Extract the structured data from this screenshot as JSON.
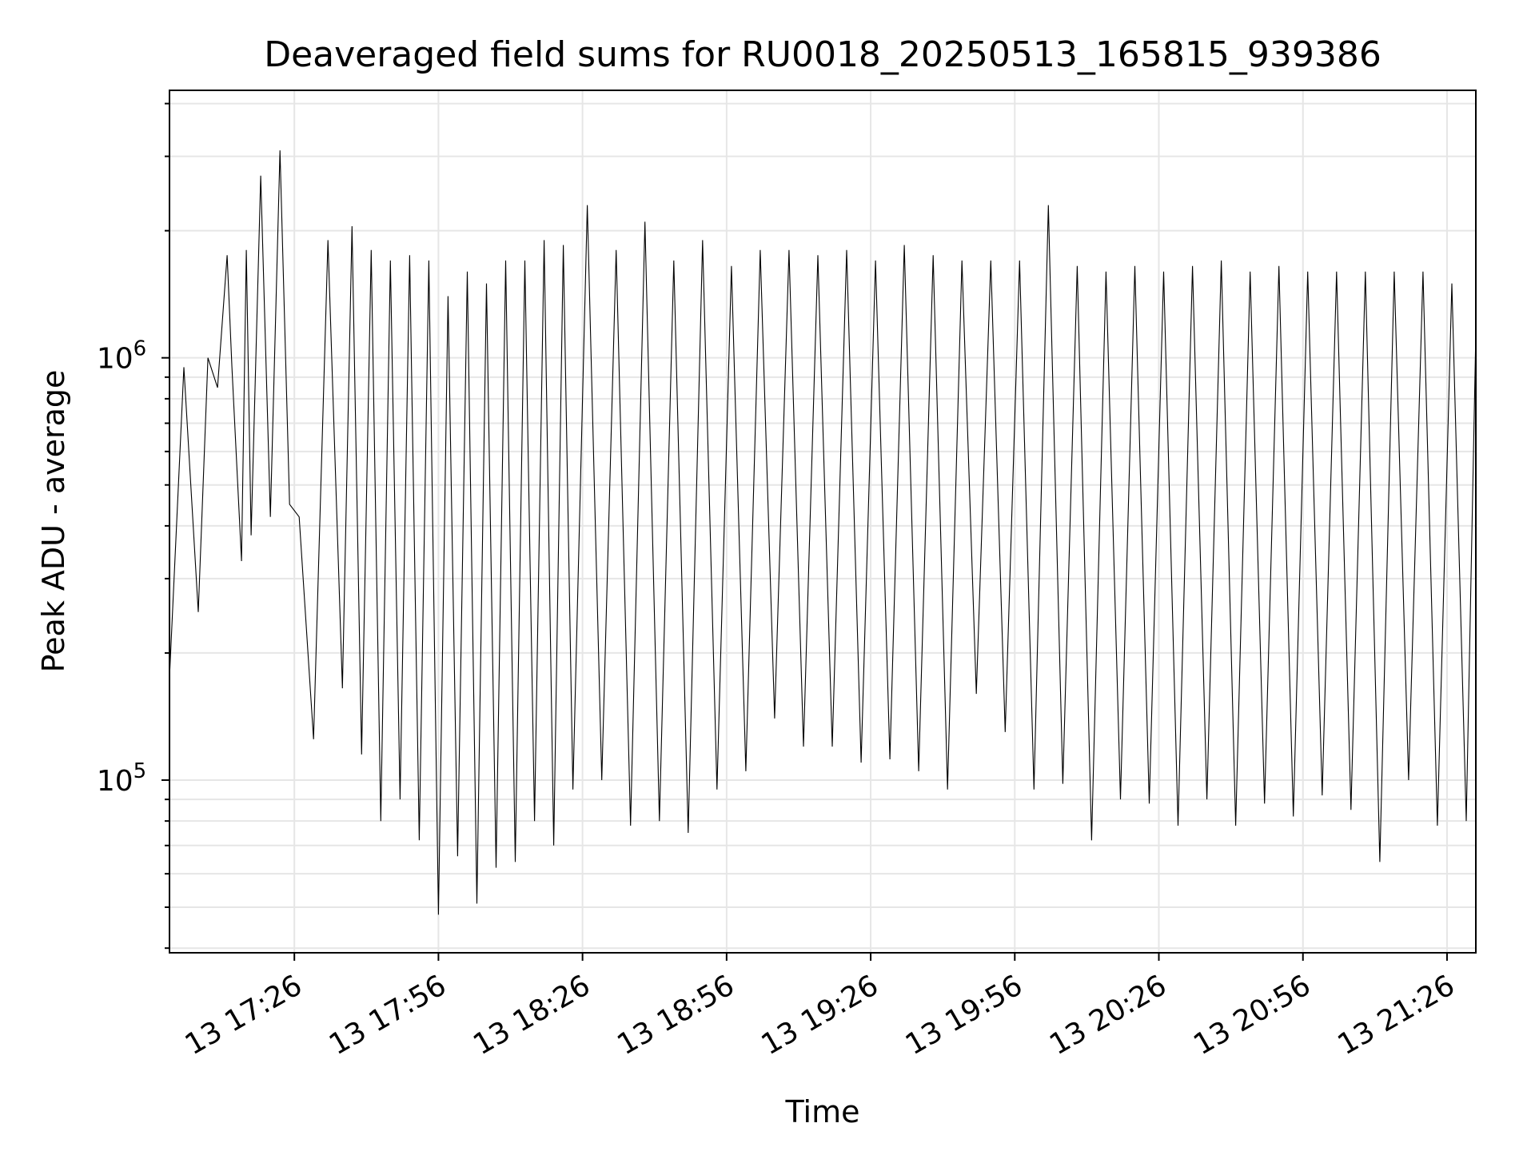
{
  "chart_data": {
    "type": "line",
    "title": "Deaveraged field sums for RU0018_20250513_165815_939386",
    "xlabel": "Time",
    "ylabel": "Peak ADU - average",
    "yscale": "log",
    "ylim": [
      39000,
      4300000
    ],
    "xlim": [
      "2025-05-13 17:00",
      "2025-05-13 21:32"
    ],
    "grid": true,
    "line_color": "#000000",
    "grid_color": "#e6e6e6",
    "x_ticks": [
      "13 17:26",
      "13 17:56",
      "13 18:26",
      "13 18:56",
      "13 19:26",
      "13 19:56",
      "13 20:26",
      "13 20:56",
      "13 21:26"
    ],
    "y_ticks": [
      {
        "value": 100000,
        "mantissa": "10",
        "exponent": "5"
      },
      {
        "value": 1000000,
        "mantissa": "10",
        "exponent": "6"
      }
    ],
    "series": [
      {
        "x": [
          "2025-05-13 17:00",
          "2025-05-13 17:03",
          "2025-05-13 17:06",
          "2025-05-13 17:08",
          "2025-05-13 17:10",
          "2025-05-13 17:12",
          "2025-05-13 17:13",
          "2025-05-13 17:15",
          "2025-05-13 17:16",
          "2025-05-13 17:17",
          "2025-05-13 17:19",
          "2025-05-13 17:21",
          "2025-05-13 17:23",
          "2025-05-13 17:25",
          "2025-05-13 17:27",
          "2025-05-13 17:30",
          "2025-05-13 17:33",
          "2025-05-13 17:36",
          "2025-05-13 17:38",
          "2025-05-13 17:40",
          "2025-05-13 17:42",
          "2025-05-13 17:44",
          "2025-05-13 17:46",
          "2025-05-13 17:48",
          "2025-05-13 17:50",
          "2025-05-13 17:52",
          "2025-05-13 17:54",
          "2025-05-13 17:56",
          "2025-05-13 17:58",
          "2025-05-13 18:00",
          "2025-05-13 18:02",
          "2025-05-13 18:04",
          "2025-05-13 18:06",
          "2025-05-13 18:08",
          "2025-05-13 18:10",
          "2025-05-13 18:12",
          "2025-05-13 18:14",
          "2025-05-13 18:16",
          "2025-05-13 18:18",
          "2025-05-13 18:20",
          "2025-05-13 18:22",
          "2025-05-13 18:24",
          "2025-05-13 18:27",
          "2025-05-13 18:30",
          "2025-05-13 18:33",
          "2025-05-13 18:36",
          "2025-05-13 18:39",
          "2025-05-13 18:42",
          "2025-05-13 18:45",
          "2025-05-13 18:48",
          "2025-05-13 18:51",
          "2025-05-13 18:54",
          "2025-05-13 18:57",
          "2025-05-13 19:00",
          "2025-05-13 19:03",
          "2025-05-13 19:06",
          "2025-05-13 19:09",
          "2025-05-13 19:12",
          "2025-05-13 19:15",
          "2025-05-13 19:18",
          "2025-05-13 19:21",
          "2025-05-13 19:24",
          "2025-05-13 19:27",
          "2025-05-13 19:30",
          "2025-05-13 19:33",
          "2025-05-13 19:36",
          "2025-05-13 19:39",
          "2025-05-13 19:42",
          "2025-05-13 19:45",
          "2025-05-13 19:48",
          "2025-05-13 19:51",
          "2025-05-13 19:54",
          "2025-05-13 19:57",
          "2025-05-13 20:00",
          "2025-05-13 20:03",
          "2025-05-13 20:06",
          "2025-05-13 20:09",
          "2025-05-13 20:12",
          "2025-05-13 20:15",
          "2025-05-13 20:18",
          "2025-05-13 20:21",
          "2025-05-13 20:24",
          "2025-05-13 20:27",
          "2025-05-13 20:30",
          "2025-05-13 20:33",
          "2025-05-13 20:36",
          "2025-05-13 20:39",
          "2025-05-13 20:42",
          "2025-05-13 20:45",
          "2025-05-13 20:48",
          "2025-05-13 20:51",
          "2025-05-13 20:54",
          "2025-05-13 20:57",
          "2025-05-13 21:00",
          "2025-05-13 21:03",
          "2025-05-13 21:06",
          "2025-05-13 21:09",
          "2025-05-13 21:12",
          "2025-05-13 21:15",
          "2025-05-13 21:18",
          "2025-05-13 21:21",
          "2025-05-13 21:24",
          "2025-05-13 21:27",
          "2025-05-13 21:30",
          "2025-05-13 21:32"
        ],
        "y": [
          175000,
          950000,
          250000,
          1000000,
          850000,
          1750000,
          950000,
          330000,
          1800000,
          380000,
          2700000,
          420000,
          3100000,
          450000,
          420000,
          125000,
          1900000,
          165000,
          2050000,
          115000,
          1800000,
          80000,
          1700000,
          90000,
          1750000,
          72000,
          1700000,
          48000,
          1400000,
          66000,
          1600000,
          51000,
          1500000,
          62000,
          1700000,
          64000,
          1700000,
          80000,
          1900000,
          70000,
          1850000,
          95000,
          2300000,
          100000,
          1800000,
          78000,
          2100000,
          80000,
          1700000,
          75000,
          1900000,
          95000,
          1650000,
          105000,
          1800000,
          140000,
          1800000,
          120000,
          1750000,
          120000,
          1800000,
          110000,
          1700000,
          112000,
          1850000,
          105000,
          1750000,
          95000,
          1700000,
          160000,
          1700000,
          130000,
          1700000,
          95000,
          2300000,
          98000,
          1650000,
          72000,
          1600000,
          90000,
          1650000,
          88000,
          1600000,
          78000,
          1650000,
          90000,
          1700000,
          78000,
          1600000,
          88000,
          1650000,
          82000,
          1600000,
          92000,
          1600000,
          85000,
          1600000,
          64000,
          1600000,
          100000,
          1600000,
          78000,
          1500000,
          80000,
          1150000
        ]
      }
    ]
  }
}
